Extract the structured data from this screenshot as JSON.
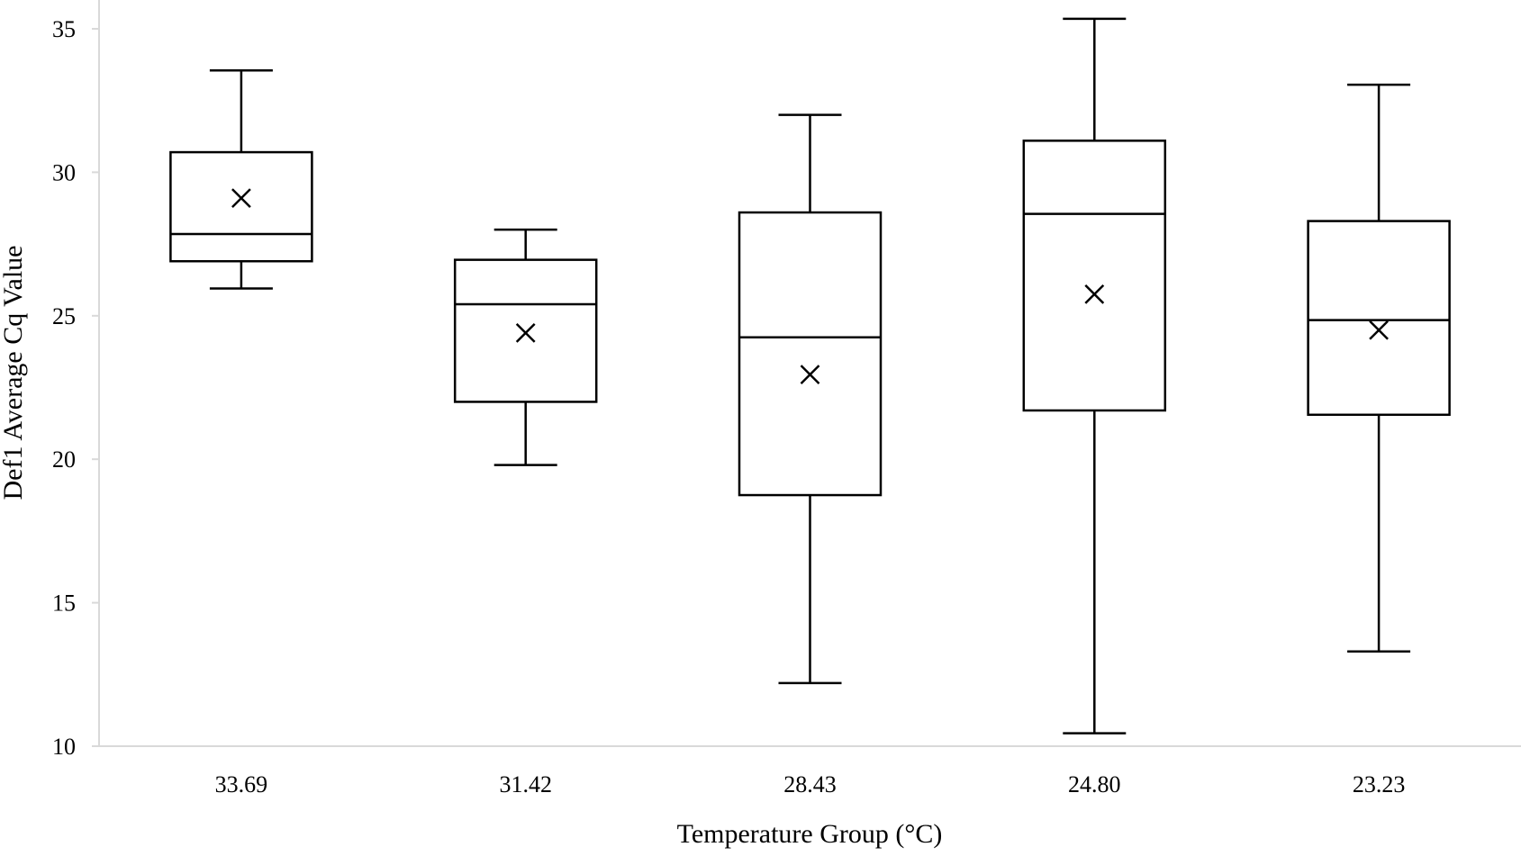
{
  "chart_data": {
    "type": "box",
    "title": "",
    "xlabel": "Temperature Group (°C)",
    "ylabel": "Def1 Average Cq Value",
    "ylim": [
      10,
      35
    ],
    "yticks": [
      10,
      15,
      20,
      25,
      30,
      35
    ],
    "grid": false,
    "legend": "none",
    "categories": [
      "33.69",
      "31.42",
      "28.43",
      "24.80",
      "23.23"
    ],
    "boxes": [
      {
        "category": "33.69",
        "min": 25.95,
        "q1": 26.9,
        "median": 27.85,
        "q3": 30.7,
        "max": 33.55,
        "mean": 29.1
      },
      {
        "category": "31.42",
        "min": 19.8,
        "q1": 22.0,
        "median": 25.4,
        "q3": 26.95,
        "max": 28.0,
        "mean": 24.4
      },
      {
        "category": "28.43",
        "min": 12.2,
        "q1": 18.75,
        "median": 24.25,
        "q3": 28.6,
        "max": 32.0,
        "mean": 22.95
      },
      {
        "category": "24.80",
        "min": 10.45,
        "q1": 21.7,
        "median": 28.55,
        "q3": 31.1,
        "max": 35.35,
        "mean": 25.75
      },
      {
        "category": "23.23",
        "min": 13.3,
        "q1": 21.55,
        "median": 24.85,
        "q3": 28.3,
        "max": 33.05,
        "mean": 24.5
      }
    ]
  }
}
